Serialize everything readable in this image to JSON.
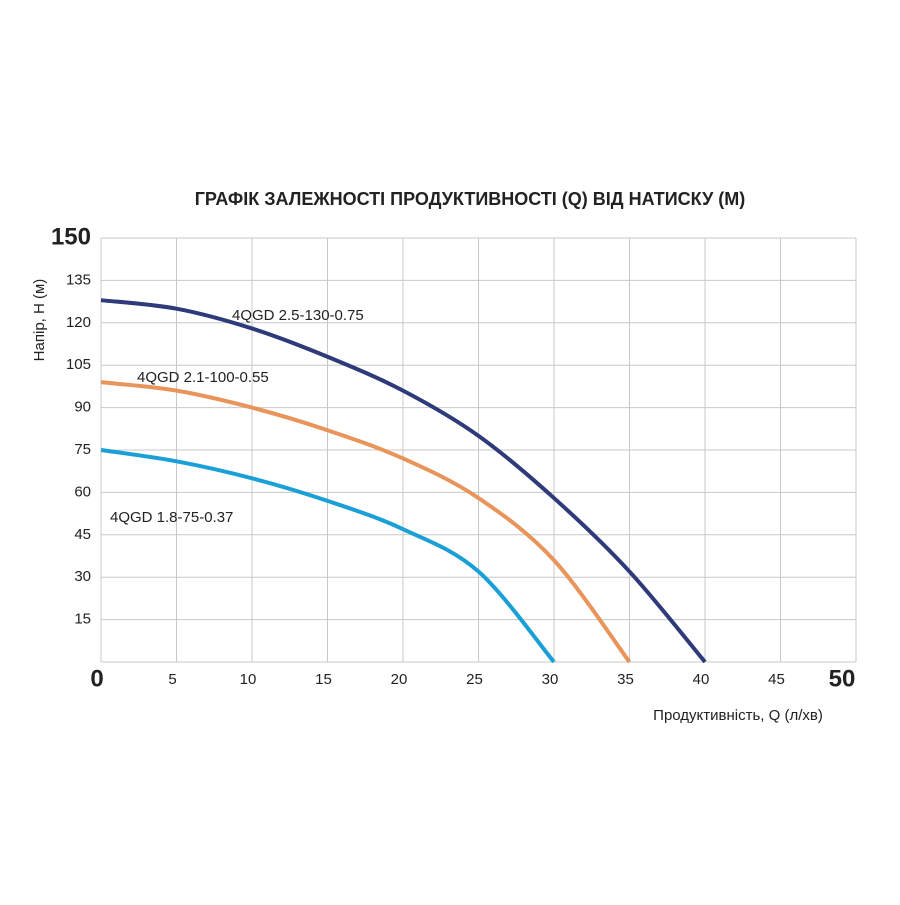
{
  "chart_data": {
    "type": "line",
    "title": "ГРАФІК ЗАЛЕЖНОСТІ ПРОДУКТИВНОСТІ (Q) ВІД НАТИСКУ (М)",
    "x_label": "Продуктивність, Q (л/хв)",
    "y_label": "Напір, Н (м)",
    "x": [
      0,
      5,
      10,
      15,
      20,
      25,
      30,
      35,
      40
    ],
    "series": [
      {
        "name": "4QGD 2.5-130-0.75",
        "color": "#2e3a7a",
        "values": [
          128,
          125,
          118,
          108,
          96,
          80,
          58,
          32,
          0
        ]
      },
      {
        "name": "4QGD 2.1-100-0.55",
        "color": "#e8945a",
        "values": [
          99,
          96,
          90,
          82,
          72,
          58,
          36,
          0,
          null
        ]
      },
      {
        "name": "4QGD 1.8-75-0.37",
        "color": "#1a9fd6",
        "values": [
          75,
          71,
          65,
          57,
          47,
          32,
          0,
          null,
          null
        ]
      }
    ],
    "xlim": [
      0,
      50
    ],
    "xticks": [
      0,
      5,
      10,
      15,
      20,
      25,
      30,
      35,
      40,
      45,
      50
    ],
    "ylim": [
      0,
      150
    ],
    "yticks": [
      15,
      30,
      45,
      60,
      75,
      90,
      105,
      120,
      135,
      150
    ],
    "grid": true
  }
}
